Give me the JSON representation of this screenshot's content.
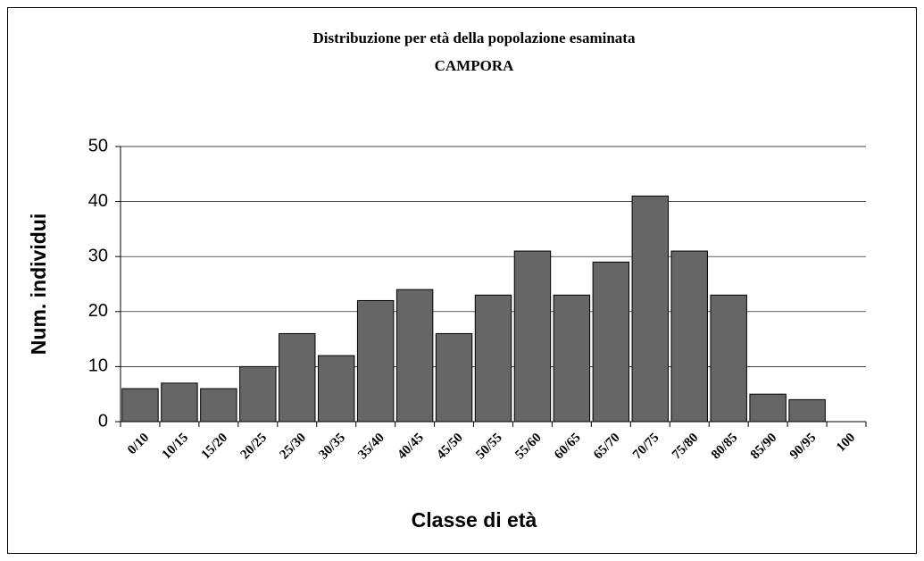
{
  "chart_data": {
    "type": "bar",
    "title": "Distribuzione per età della popolazione esaminata",
    "subtitle": "CAMPORA",
    "x_label": "Classe di età",
    "y_label": "Num. individui",
    "categories": [
      "0/10",
      "10/15",
      "15/20",
      "20/25",
      "25/30",
      "30/35",
      "35/40",
      "40/45",
      "45/50",
      "50/55",
      "55/60",
      "60/65",
      "65/70",
      "70/75",
      "75/80",
      "80/85",
      "85/90",
      "90/95",
      "100"
    ],
    "values": [
      6,
      7,
      6,
      10,
      16,
      12,
      22,
      24,
      16,
      23,
      31,
      23,
      29,
      41,
      31,
      23,
      5,
      4,
      null
    ],
    "color": "#666666",
    "ylim": [
      0,
      50
    ],
    "yticks": [
      0,
      10,
      20,
      30,
      40,
      50
    ],
    "grid": true
  }
}
